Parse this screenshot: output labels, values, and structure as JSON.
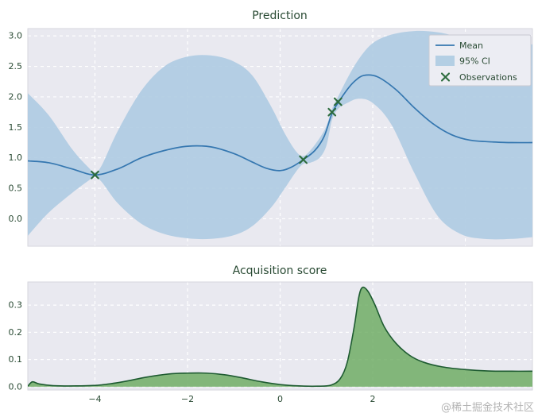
{
  "watermark": {
    "text": "@稀土掘金技术社区"
  },
  "style": {
    "plot_bg": "#e9e9f0",
    "grid_color": "#ffffff",
    "text_color": "#294a33",
    "spine_color": "#d6d6de",
    "legend_bg": "#ecedf3",
    "legend_border": "#c9c9d2",
    "watermark_color": "#b3b3b3"
  },
  "chart_data": [
    {
      "type": "line",
      "title": "Prediction",
      "xlabel": "",
      "ylabel": "",
      "xlim": [
        -5.45,
        5.45
      ],
      "ylim": [
        -0.45,
        3.12
      ],
      "grid": true,
      "legend": [
        "Mean",
        "95% CI",
        "Observations"
      ],
      "legend_position": "upper right",
      "xticks": [
        -4,
        -2,
        0,
        2,
        4
      ],
      "yticks": [
        0.0,
        0.5,
        1.0,
        1.5,
        2.0,
        2.5,
        3.0
      ],
      "ytick_labels": [
        "0.0",
        "0.5",
        "1.0",
        "1.5",
        "2.0",
        "2.5",
        "3.0"
      ],
      "series": [
        {
          "name": "95% CI",
          "type": "band",
          "color": "#aecbe2",
          "opacity": 0.9,
          "x": [
            -5.45,
            -5.0,
            -4.5,
            -4.15,
            -4.0,
            -3.85,
            -3.5,
            -3.0,
            -2.5,
            -2.0,
            -1.5,
            -1.0,
            -0.6,
            -0.2,
            0.1,
            0.35,
            0.5,
            0.65,
            0.85,
            1.0,
            1.12,
            1.25,
            1.45,
            1.7,
            2.0,
            2.4,
            2.9,
            3.4,
            3.9,
            4.4,
            5.0,
            5.45
          ],
          "upper": [
            2.06,
            1.7,
            1.15,
            0.85,
            0.76,
            0.88,
            1.45,
            2.1,
            2.5,
            2.66,
            2.68,
            2.58,
            2.35,
            1.85,
            1.4,
            1.1,
            1.03,
            1.12,
            1.32,
            1.52,
            1.8,
            2.0,
            2.3,
            2.62,
            2.88,
            3.02,
            3.08,
            3.06,
            2.98,
            2.92,
            2.88,
            2.86
          ],
          "lower": [
            -0.28,
            0.1,
            0.42,
            0.62,
            0.69,
            0.6,
            0.25,
            -0.08,
            -0.25,
            -0.32,
            -0.33,
            -0.27,
            -0.12,
            0.18,
            0.5,
            0.78,
            0.9,
            0.92,
            1.0,
            1.2,
            1.62,
            1.8,
            1.9,
            1.97,
            1.9,
            1.55,
            0.75,
            0.05,
            -0.25,
            -0.33,
            -0.33,
            -0.3
          ]
        },
        {
          "name": "Mean",
          "type": "line",
          "color": "#3577b0",
          "x": [
            -5.45,
            -5.0,
            -4.5,
            -4.0,
            -3.5,
            -3.0,
            -2.5,
            -2.0,
            -1.5,
            -1.0,
            -0.6,
            -0.3,
            0.0,
            0.25,
            0.5,
            0.75,
            0.95,
            1.12,
            1.25,
            1.45,
            1.6,
            1.8,
            2.1,
            2.5,
            2.9,
            3.3,
            3.7,
            4.1,
            4.6,
            5.0,
            5.45
          ],
          "y": [
            0.95,
            0.92,
            0.82,
            0.72,
            0.82,
            1.0,
            1.12,
            1.19,
            1.18,
            1.07,
            0.93,
            0.83,
            0.79,
            0.85,
            0.97,
            1.12,
            1.35,
            1.73,
            1.9,
            2.12,
            2.25,
            2.35,
            2.33,
            2.12,
            1.82,
            1.56,
            1.38,
            1.29,
            1.26,
            1.25,
            1.25
          ]
        },
        {
          "name": "Observations",
          "type": "scatter",
          "marker": "x",
          "color": "#2c6b3c",
          "x": [
            -4.0,
            0.5,
            1.12,
            1.25
          ],
          "y": [
            0.72,
            0.97,
            1.75,
            1.92
          ]
        }
      ]
    },
    {
      "type": "area",
      "title": "Acquisition score",
      "xlabel": "",
      "ylabel": "",
      "xlim": [
        -5.45,
        5.45
      ],
      "ylim": [
        -0.012,
        0.385
      ],
      "grid": true,
      "xticks": [
        -4,
        -2,
        0,
        2,
        4
      ],
      "xtick_labels": [
        "−4",
        "−2",
        "0",
        "2",
        ""
      ],
      "yticks": [
        0.0,
        0.1,
        0.2,
        0.3
      ],
      "ytick_labels": [
        "0.0",
        "0.1",
        "0.2",
        "0.3"
      ],
      "series": [
        {
          "name": "Acquisition score",
          "type": "area",
          "color": "#1e5b31",
          "fill": "#68a95c",
          "opacity": 0.8,
          "x": [
            -5.45,
            -5.35,
            -5.2,
            -4.9,
            -4.4,
            -3.9,
            -3.4,
            -2.9,
            -2.4,
            -2.0,
            -1.6,
            -1.2,
            -0.8,
            -0.4,
            0.0,
            0.4,
            0.8,
            1.1,
            1.3,
            1.45,
            1.6,
            1.7,
            1.78,
            1.9,
            2.05,
            2.25,
            2.5,
            2.8,
            3.1,
            3.5,
            4.0,
            4.5,
            5.0,
            5.45
          ],
          "y": [
            0.002,
            0.018,
            0.01,
            0.004,
            0.003,
            0.006,
            0.018,
            0.035,
            0.047,
            0.05,
            0.05,
            0.044,
            0.032,
            0.018,
            0.008,
            0.003,
            0.002,
            0.006,
            0.03,
            0.09,
            0.22,
            0.33,
            0.365,
            0.35,
            0.3,
            0.22,
            0.16,
            0.115,
            0.09,
            0.073,
            0.063,
            0.058,
            0.057,
            0.057
          ]
        }
      ]
    }
  ]
}
